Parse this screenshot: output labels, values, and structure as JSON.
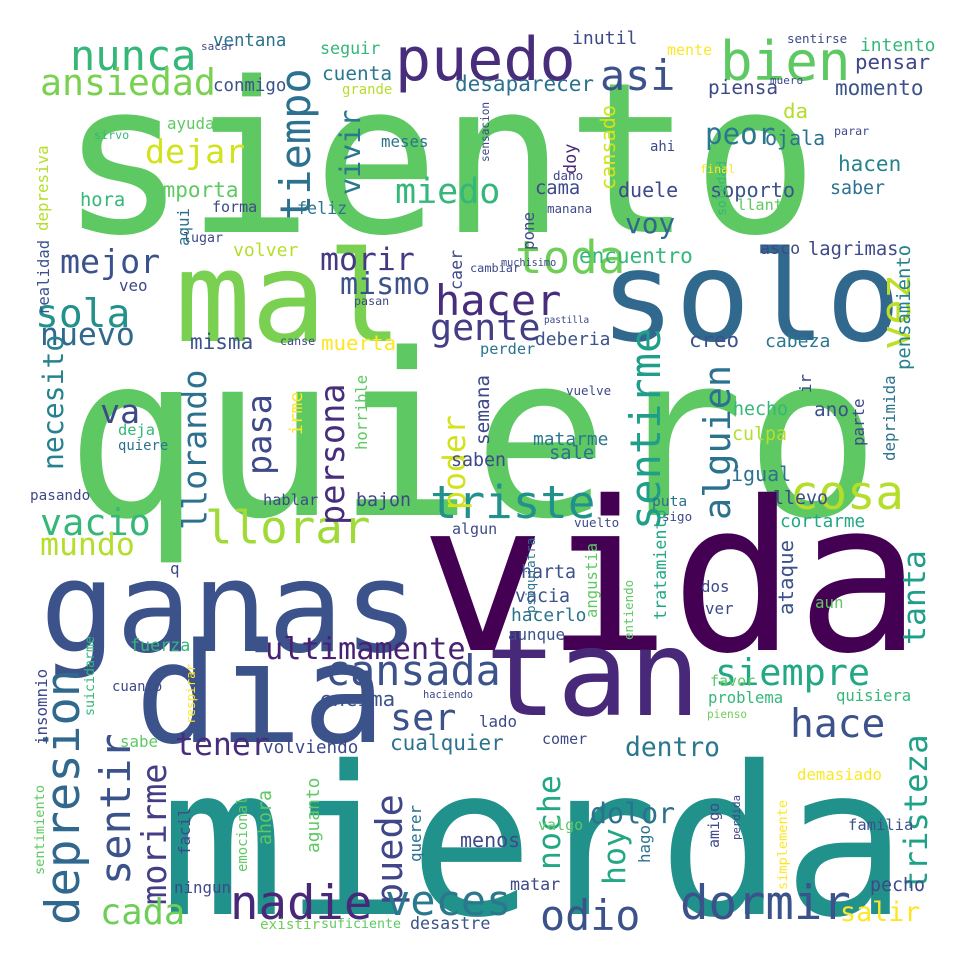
{
  "words": [
    {
      "text": "siento",
      "color": "#5ec962"
    },
    {
      "text": "quiero",
      "color": "#5ec962"
    },
    {
      "text": "vida",
      "color": "#440154"
    },
    {
      "text": "mierda",
      "color": "#21918c"
    },
    {
      "text": "ganas",
      "color": "#3b528b"
    },
    {
      "text": "tan",
      "color": "#482878"
    },
    {
      "text": "dia",
      "color": "#3b528b"
    },
    {
      "text": "mal",
      "color": "#7ad151"
    },
    {
      "text": "solo",
      "color": "#31688e"
    },
    {
      "text": "puedo",
      "color": "#472d7b"
    },
    {
      "text": "bien",
      "color": "#5ec962"
    },
    {
      "text": "nunca",
      "color": "#35b779"
    },
    {
      "text": "tiempo",
      "color": "#2c728e"
    },
    {
      "text": "asi",
      "color": "#3b528b"
    },
    {
      "text": "ansiedad",
      "color": "#7ad151"
    },
    {
      "text": "vivir",
      "color": "#2a788e"
    },
    {
      "text": "peor",
      "color": "#2a788e"
    },
    {
      "text": "dejar",
      "color": "#d2e21b"
    },
    {
      "text": "miedo",
      "color": "#35b779"
    },
    {
      "text": "voy",
      "color": "#31688e"
    },
    {
      "text": "toda",
      "color": "#6ece58"
    },
    {
      "text": "vez",
      "color": "#bddf26"
    },
    {
      "text": "mejor",
      "color": "#3b528b"
    },
    {
      "text": "morir",
      "color": "#443983"
    },
    {
      "text": "hacer",
      "color": "#472d7b"
    },
    {
      "text": "mismo",
      "color": "#3b528b"
    },
    {
      "text": "sola",
      "color": "#21918c"
    },
    {
      "text": "gente",
      "color": "#433e85"
    },
    {
      "text": "nuevo",
      "color": "#31688e"
    },
    {
      "text": "sentirme",
      "color": "#1f9e89"
    },
    {
      "text": "alguien",
      "color": "#2c728e"
    },
    {
      "text": "cosa",
      "color": "#b5de2b"
    },
    {
      "text": "triste",
      "color": "#21918c"
    },
    {
      "text": "llorar",
      "color": "#a0da39"
    },
    {
      "text": "vacio",
      "color": "#35b779"
    },
    {
      "text": "mundo",
      "color": "#b5de2b"
    },
    {
      "text": "necesito",
      "color": "#26828e"
    },
    {
      "text": "va",
      "color": "#3e4989"
    },
    {
      "text": "llorando",
      "color": "#2c728e"
    },
    {
      "text": "pasa",
      "color": "#3e4989"
    },
    {
      "text": "persona",
      "color": "#472d7b"
    },
    {
      "text": "poder",
      "color": "#d2e21b"
    },
    {
      "text": "tanta",
      "color": "#1f9e89"
    },
    {
      "text": "ultimamente",
      "color": "#482173"
    },
    {
      "text": "depresion",
      "color": "#31688e"
    },
    {
      "text": "cansada",
      "color": "#3b528b"
    },
    {
      "text": "siempre",
      "color": "#22a884"
    },
    {
      "text": "sentir",
      "color": "#3b528b"
    },
    {
      "text": "ser",
      "color": "#3b528b"
    },
    {
      "text": "hace",
      "color": "#3b528b"
    },
    {
      "text": "morirme",
      "color": "#433e85"
    },
    {
      "text": "puede",
      "color": "#404688"
    },
    {
      "text": "noche",
      "color": "#22a884"
    },
    {
      "text": "tener",
      "color": "#472d7b"
    },
    {
      "text": "dentro",
      "color": "#2a788e"
    },
    {
      "text": "tristeza",
      "color": "#1fa187"
    },
    {
      "text": "hoy",
      "color": "#22a884"
    },
    {
      "text": "dolor",
      "color": "#2c728e"
    },
    {
      "text": "cada",
      "color": "#6ece58"
    },
    {
      "text": "nadie",
      "color": "#482878"
    },
    {
      "text": "veces",
      "color": "#2a788e"
    },
    {
      "text": "dormir",
      "color": "#3b528b"
    },
    {
      "text": "odio",
      "color": "#3b528b"
    },
    {
      "text": "salir",
      "color": "#fde725"
    },
    {
      "text": "seguir",
      "color": "#35b779"
    },
    {
      "text": "cuenta",
      "color": "#2a788e"
    },
    {
      "text": "inutil",
      "color": "#3e4989"
    },
    {
      "text": "desaparecer",
      "color": "#2c728e"
    },
    {
      "text": "pensar",
      "color": "#404688"
    },
    {
      "text": "momento",
      "color": "#3b528b"
    },
    {
      "text": "intento",
      "color": "#35b779"
    },
    {
      "text": "piensa",
      "color": "#3e4989"
    },
    {
      "text": "ventana",
      "color": "#2c728e"
    },
    {
      "text": "conmigo",
      "color": "#3b528b"
    },
    {
      "text": "grande",
      "color": "#b5de2b"
    },
    {
      "text": "cansado",
      "color": "#d2e21b"
    },
    {
      "text": "da",
      "color": "#b5de2b"
    },
    {
      "text": "ojala",
      "color": "#2c728e"
    },
    {
      "text": "hacen",
      "color": "#26828e"
    },
    {
      "text": "saber",
      "color": "#2c728e"
    },
    {
      "text": "soporto",
      "color": "#3b528b"
    },
    {
      "text": "duele",
      "color": "#3e4989"
    },
    {
      "text": "cama",
      "color": "#3e4989"
    },
    {
      "text": "feliz",
      "color": "#2c728e"
    },
    {
      "text": "forma",
      "color": "#3e4989"
    },
    {
      "text": "hora",
      "color": "#35b779"
    },
    {
      "text": "importa",
      "color": "#5ec962"
    },
    {
      "text": "ayuda",
      "color": "#5ec962"
    },
    {
      "text": "sirvo",
      "color": "#35b779"
    },
    {
      "text": "meses",
      "color": "#2c728e"
    },
    {
      "text": "doy",
      "color": "#482878"
    },
    {
      "text": "llanto",
      "color": "#5ec962"
    },
    {
      "text": "soledad",
      "color": "#35b779"
    },
    {
      "text": "volver",
      "color": "#b5de2b"
    },
    {
      "text": "lugar",
      "color": "#3e4989"
    },
    {
      "text": "caer",
      "color": "#3e4989"
    },
    {
      "text": "encuentro",
      "color": "#35b779"
    },
    {
      "text": "asco",
      "color": "#3e4989"
    },
    {
      "text": "lagrimas",
      "color": "#3e4989"
    },
    {
      "text": "pensamiento",
      "color": "#26828e"
    },
    {
      "text": "misma",
      "color": "#3b528b"
    },
    {
      "text": "muerta",
      "color": "#fde725"
    },
    {
      "text": "creo",
      "color": "#3b528b"
    },
    {
      "text": "cabeza",
      "color": "#2a788e"
    },
    {
      "text": "deberia",
      "color": "#3b528b"
    },
    {
      "text": "perder",
      "color": "#2c728e"
    },
    {
      "text": "semana",
      "color": "#3e4989"
    },
    {
      "text": "hecho",
      "color": "#35b779"
    },
    {
      "text": "ano",
      "color": "#3b528b"
    },
    {
      "text": "culpa",
      "color": "#b5de2b"
    },
    {
      "text": "igual",
      "color": "#2c728e"
    },
    {
      "text": "matarme",
      "color": "#2a788e"
    },
    {
      "text": "saben",
      "color": "#3e4989"
    },
    {
      "text": "sale",
      "color": "#2c728e"
    },
    {
      "text": "hablar",
      "color": "#3e4989"
    },
    {
      "text": "bajon",
      "color": "#3e4989"
    },
    {
      "text": "llevo",
      "color": "#3e4989"
    },
    {
      "text": "cortarme",
      "color": "#22a884"
    },
    {
      "text": "algun",
      "color": "#3e4989"
    },
    {
      "text": "harta",
      "color": "#3b528b"
    },
    {
      "text": "vacia",
      "color": "#3b528b"
    },
    {
      "text": "hacerlo",
      "color": "#2c728e"
    },
    {
      "text": "aunque",
      "color": "#3b528b"
    },
    {
      "text": "ataque",
      "color": "#3b528b"
    },
    {
      "text": "dos",
      "color": "#3e4989"
    },
    {
      "text": "ver",
      "color": "#3e4989"
    },
    {
      "text": "fuerza",
      "color": "#35b779"
    },
    {
      "text": "encima",
      "color": "#3b528b"
    },
    {
      "text": "haciendo",
      "color": "#3e4989"
    },
    {
      "text": "problema",
      "color": "#35b779"
    },
    {
      "text": "quisiera",
      "color": "#35b779"
    },
    {
      "text": "cualquier",
      "color": "#2c728e"
    },
    {
      "text": "volviendo",
      "color": "#3e4989"
    },
    {
      "text": "demasiado",
      "color": "#fde725"
    },
    {
      "text": "familia",
      "color": "#3b528b"
    },
    {
      "text": "menos",
      "color": "#3e4989"
    },
    {
      "text": "matar",
      "color": "#3e4989"
    },
    {
      "text": "pecho",
      "color": "#3e4989"
    },
    {
      "text": "desastre",
      "color": "#3b528b"
    },
    {
      "text": "suficiente",
      "color": "#5ec962"
    },
    {
      "text": "existir",
      "color": "#6ece58"
    },
    {
      "text": "ningun",
      "color": "#3e4989"
    },
    {
      "text": "pasando",
      "color": "#3e4989"
    },
    {
      "text": "realidad",
      "color": "#3b528b"
    },
    {
      "text": "depresiva",
      "color": "#b5de2b"
    },
    {
      "text": "aqui",
      "color": "#2c728e"
    },
    {
      "text": "veo",
      "color": "#3e4989"
    },
    {
      "text": "deja",
      "color": "#35b779"
    },
    {
      "text": "quiere",
      "color": "#2c728e"
    },
    {
      "text": "irme",
      "color": "#fde725"
    },
    {
      "text": "horrible",
      "color": "#5ec962"
    },
    {
      "text": "vuelve",
      "color": "#3e4989"
    },
    {
      "text": "ir",
      "color": "#3e4989"
    },
    {
      "text": "parte",
      "color": "#3e4989"
    },
    {
      "text": "deprimida",
      "color": "#2c728e"
    },
    {
      "text": "puta",
      "color": "#2c728e"
    },
    {
      "text": "sigo",
      "color": "#3e4989"
    },
    {
      "text": "vuelto",
      "color": "#3e4989"
    },
    {
      "text": "tratamiento",
      "color": "#22a884"
    },
    {
      "text": "entiendo",
      "color": "#5ec962"
    },
    {
      "text": "aun",
      "color": "#5ec962"
    },
    {
      "text": "psiquiatra",
      "color": "#2c728e"
    },
    {
      "text": "angustia",
      "color": "#5ec962"
    },
    {
      "text": "suicidarme",
      "color": "#35b779"
    },
    {
      "text": "cuanto",
      "color": "#3e4989"
    },
    {
      "text": "sabe",
      "color": "#5ec962"
    },
    {
      "text": "respirar",
      "color": "#fde725"
    },
    {
      "text": "lado",
      "color": "#3e4989"
    },
    {
      "text": "favor",
      "color": "#5ec962"
    },
    {
      "text": "comer",
      "color": "#3e4989"
    },
    {
      "text": "pienso",
      "color": "#6ece58"
    },
    {
      "text": "ahora",
      "color": "#5ec962"
    },
    {
      "text": "aguanto",
      "color": "#5ec962"
    },
    {
      "text": "querer",
      "color": "#2c728e"
    },
    {
      "text": "emocional",
      "color": "#5ec962"
    },
    {
      "text": "valgo",
      "color": "#5ec962"
    },
    {
      "text": "amigo",
      "color": "#3e4989"
    },
    {
      "text": "perdida",
      "color": "#3e4989"
    },
    {
      "text": "simplemente",
      "color": "#fde725"
    },
    {
      "text": "hago",
      "color": "#2c728e"
    },
    {
      "text": "facil",
      "color": "#3e4989"
    },
    {
      "text": "sentimiento",
      "color": "#5ec962"
    },
    {
      "text": "insomnio",
      "color": "#3e4989"
    },
    {
      "text": "mente",
      "color": "#fde725"
    },
    {
      "text": "muero",
      "color": "#3e4989"
    },
    {
      "text": "sentirse",
      "color": "#3e4989"
    },
    {
      "text": "sacar",
      "color": "#3e4989"
    },
    {
      "text": "sensacion",
      "color": "#3e4989"
    },
    {
      "text": "dano",
      "color": "#3e4989"
    },
    {
      "text": "manana",
      "color": "#3e4989"
    },
    {
      "text": "pone",
      "color": "#3e4989"
    },
    {
      "text": "final",
      "color": "#fde725"
    },
    {
      "text": "ahi",
      "color": "#3e4989"
    },
    {
      "text": "parar",
      "color": "#3e4989"
    },
    {
      "text": "cambiar",
      "color": "#3e4989"
    },
    {
      "text": "muchisimo",
      "color": "#3e4989"
    },
    {
      "text": "pasan",
      "color": "#3e4989"
    },
    {
      "text": "pastilla",
      "color": "#3e4989"
    },
    {
      "text": "canse",
      "color": "#3e4989"
    },
    {
      "text": "q",
      "color": "#3e4989"
    }
  ]
}
